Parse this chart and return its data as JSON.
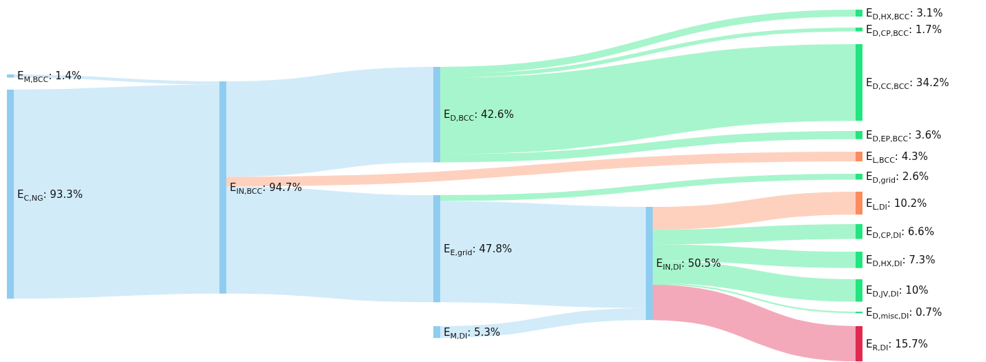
{
  "chart_data": {
    "type": "other",
    "categories": [
      "E$_{M,BCC}$",
      "E$_{C,NG}$",
      "E$_{IN,BCC}$",
      "E$_{D,BCC}$",
      "E$_{E,grid}$",
      "E$_{M,DI}$",
      "E$_{IN,DI}$",
      "E$_{D,HX,BCC}$",
      "E$_{D,CP,BCC}$",
      "E$_{D,CC,BCC}$",
      "E$_{D,EP,BCC}$",
      "E$_{L,BCC}$",
      "E$_{D,grid}$",
      "E$_{L,DI}$",
      "E$_{D,CP,DI}$",
      "E$_{D,HX,DI}$",
      "E$_{D,JV,DI}$",
      "E$_{D,misc,DI}$",
      "E$_{R,DI}$"
    ],
    "values": [
      1.4,
      93.3,
      94.7,
      42.6,
      47.8,
      5.3,
      50.5,
      3.1,
      1.7,
      34.2,
      3.6,
      4.3,
      2.6,
      10.2,
      6.6,
      7.3,
      10,
      0.7,
      15.7
    ],
    "value_labels": [
      ": 1.4%",
      ": 93.3%",
      ": 94.7%",
      ": 42.6%",
      ": 47.8%",
      ": 5.3%",
      ": 50.5%",
      ": 3.1%",
      ": 1.7%",
      ": 34.2%",
      ": 3.6%",
      ": 4.3%",
      ": 2.6%",
      ": 10.2%",
      ": 6.6%",
      ": 7.3%",
      ": 10%",
      ": 0.7%",
      ": 15.7%"
    ],
    "colors": [
      "#8ecdf0",
      "#8ecdf0",
      "#8ecdf0",
      "#8ecdf0",
      "#8ecdf0",
      "#8ecdf0",
      "#8ecdf0",
      "#22e57f",
      "#22e57f",
      "#22e57f",
      "#22e57f",
      "#fc8c5e",
      "#22e57f",
      "#fc8c5e",
      "#22e57f",
      "#22e57f",
      "#22e57f",
      "#22e57f",
      "#e0294f"
    ]
  }
}
